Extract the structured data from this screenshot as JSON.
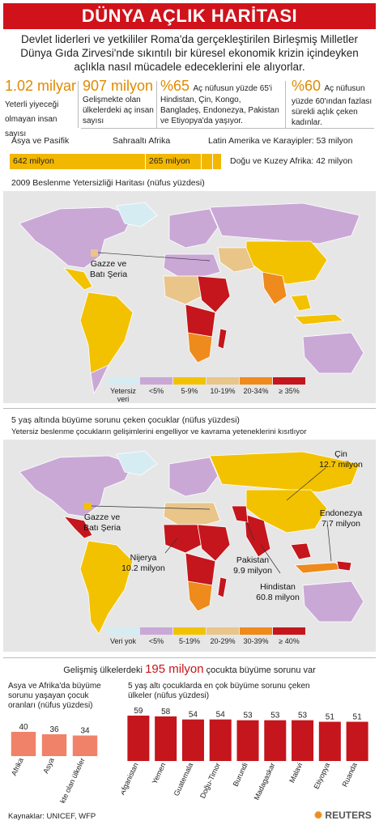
{
  "title": "DÜNYA AÇLIK HARİTASI",
  "intro": "Devlet liderleri ve yetkililer Roma'da gerçekleştirilen Birleşmiş Milletler Dünya Gıda Zirvesi'nde sıkıntılı bir küresel ekonomik krizin içindeyken açlıkla nasıl mücadele edeceklerini ele alıyorlar.",
  "stats": [
    {
      "num": "1.02 milyar",
      "text": "Yeterli yiyeceği olmayan insan sayısı"
    },
    {
      "num": "907 milyon",
      "text": "Gelişmekte olan ülkelerdeki aç insan sayısı"
    },
    {
      "num": "%65",
      "lead": "Aç nüfusun yüzde 65'i",
      "text": "Hindistan, Çin, Kongo, Bangladeş, Endonezya, Pakistan ve Etiyopya'da yaşıyor."
    },
    {
      "num": "%60",
      "lead": "Aç nüfusun",
      "text": "yüzde 60'ından fazlası sürekli açlık çeken kadınlar."
    }
  ],
  "regions": {
    "asia_label": "Asya ve Pasifik",
    "asia_value": "642 milyon",
    "africa_label": "Sahraaltı Afrika",
    "africa_value": "265 milyon",
    "latam_label": "Latin Amerika ve Karayipler: 53 milyon",
    "mena_label": "Doğu ve Kuzey Afrika: 42 milyon",
    "values": [
      642,
      265,
      53,
      42
    ],
    "colors": [
      "#f2b700",
      "#f2b700",
      "#f2b700",
      "#f2b700"
    ]
  },
  "map1": {
    "title": "2009 Beslenme Yetersizliği Haritası (nüfus yüzdesi)",
    "gaza_label": "Gazze ve Batı Şeria",
    "legend": [
      {
        "label": "Yetersiz veri",
        "color": "#d6ecf3"
      },
      {
        "label": "<5%",
        "color": "#c9a8d6"
      },
      {
        "label": "5-9%",
        "color": "#f2c200"
      },
      {
        "label": "10-19%",
        "color": "#e9c58a"
      },
      {
        "label": "20-34%",
        "color": "#ef8a1c"
      },
      {
        "label": "≥ 35%",
        "color": "#c4161c"
      }
    ]
  },
  "map2": {
    "title": "5 yaş altında büyüme sorunu çeken çocuklar (nüfus yüzdesi)",
    "subtitle": "Yetersiz beslenme çocukların gelişimlerini engelliyor ve kavrama yeteneklerini kısıtlıyor",
    "gaza_label": "Gazze ve Batı Şeria",
    "callouts": {
      "china": "Çin\n12.7 milyon",
      "indonesia": "Endonezya\n7.7 milyon",
      "pakistan": "Pakistan\n9.9 milyon",
      "india": "Hindistan\n60.8 milyon",
      "nigeria": "Nijerya\n10.2 milyon"
    },
    "legend": [
      {
        "label": "Veri yok",
        "color": "#d6ecf3"
      },
      {
        "label": "<5%",
        "color": "#c9a8d6"
      },
      {
        "label": "5-19%",
        "color": "#f2c200"
      },
      {
        "label": "20-29%",
        "color": "#e9c58a"
      },
      {
        "label": "30-39%",
        "color": "#ef8a1c"
      },
      {
        "label": "≥ 40%",
        "color": "#c4161c"
      }
    ]
  },
  "stunting": {
    "pre": "Gelişmiş ülkelerdeki",
    "highlight": "195 milyon",
    "post": "çocukta büyüme sorunu var"
  },
  "chart_data": [
    {
      "type": "bar",
      "title": "Asya ve Afrika'da büyüme sorunu yaşayan çocuk oranları (nüfus yüzdesi)",
      "categories": [
        "Afrika",
        "Asya",
        "Gelişmekte olan ülkeler"
      ],
      "values": [
        40,
        36,
        34
      ],
      "color": "#f0826a"
    },
    {
      "type": "bar",
      "title": "5 yaş altı çocuklarda en çok büyüme sorunu çeken ülkeler (nüfus yüzdesi)",
      "categories": [
        "Afganistan",
        "Yemen",
        "Guatemala",
        "Doğu-Timor",
        "Burundi",
        "Madagaskar",
        "Malavi",
        "Etiyopya",
        "Ruanda"
      ],
      "values": [
        59,
        58,
        54,
        54,
        53,
        53,
        53,
        51,
        51
      ],
      "color": "#c4161c"
    }
  ],
  "footer": {
    "sources": "Kaynaklar: UNICEF, WFP",
    "brand": "REUTERS"
  }
}
